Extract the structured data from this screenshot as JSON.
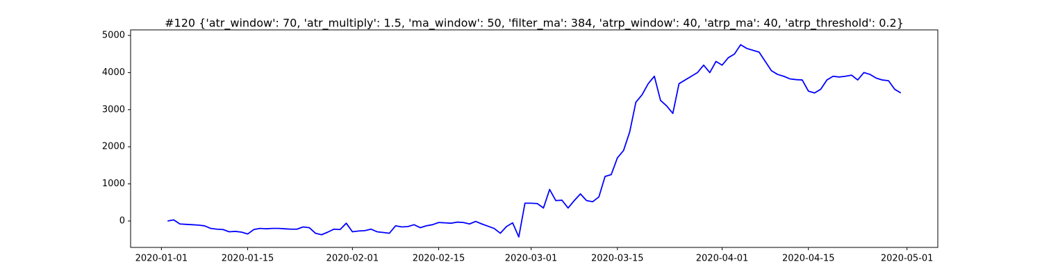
{
  "chart_data": {
    "type": "line",
    "title": "#120 {'atr_window': 70, 'atr_multiply': 1.5, 'ma_window': 50, 'filter_ma': 384, 'atrp_window': 40, 'atrp_ma': 40, 'atrp_threshold': 0.2}",
    "color": "#0000ff",
    "x": [
      "2020-01-02",
      "2020-01-03",
      "2020-01-04",
      "2020-01-05",
      "2020-01-06",
      "2020-01-07",
      "2020-01-08",
      "2020-01-09",
      "2020-01-10",
      "2020-01-11",
      "2020-01-12",
      "2020-01-13",
      "2020-01-14",
      "2020-01-15",
      "2020-01-16",
      "2020-01-17",
      "2020-01-18",
      "2020-01-19",
      "2020-01-20",
      "2020-01-21",
      "2020-01-22",
      "2020-01-23",
      "2020-01-24",
      "2020-01-25",
      "2020-01-26",
      "2020-01-27",
      "2020-01-28",
      "2020-01-29",
      "2020-01-30",
      "2020-01-31",
      "2020-02-01",
      "2020-02-02",
      "2020-02-03",
      "2020-02-04",
      "2020-02-05",
      "2020-02-06",
      "2020-02-07",
      "2020-02-08",
      "2020-02-09",
      "2020-02-10",
      "2020-02-11",
      "2020-02-12",
      "2020-02-13",
      "2020-02-14",
      "2020-02-15",
      "2020-02-16",
      "2020-02-17",
      "2020-02-18",
      "2020-02-19",
      "2020-02-20",
      "2020-02-21",
      "2020-02-22",
      "2020-02-23",
      "2020-02-24",
      "2020-02-25",
      "2020-02-26",
      "2020-02-27",
      "2020-02-28",
      "2020-02-29",
      "2020-03-01",
      "2020-03-02",
      "2020-03-03",
      "2020-03-04",
      "2020-03-05",
      "2020-03-06",
      "2020-03-07",
      "2020-03-08",
      "2020-03-09",
      "2020-03-10",
      "2020-03-11",
      "2020-03-12",
      "2020-03-13",
      "2020-03-14",
      "2020-03-15",
      "2020-03-16",
      "2020-03-17",
      "2020-03-18",
      "2020-03-19",
      "2020-03-20",
      "2020-03-21",
      "2020-03-22",
      "2020-03-23",
      "2020-03-24",
      "2020-03-25",
      "2020-03-26",
      "2020-03-27",
      "2020-03-28",
      "2020-03-29",
      "2020-03-30",
      "2020-03-31",
      "2020-04-01",
      "2020-04-02",
      "2020-04-03",
      "2020-04-04",
      "2020-04-05",
      "2020-04-06",
      "2020-04-07",
      "2020-04-08",
      "2020-04-09",
      "2020-04-10",
      "2020-04-11",
      "2020-04-12",
      "2020-04-13",
      "2020-04-14",
      "2020-04-15",
      "2020-04-16",
      "2020-04-17",
      "2020-04-18",
      "2020-04-19",
      "2020-04-20",
      "2020-04-21",
      "2020-04-22",
      "2020-04-23",
      "2020-04-24",
      "2020-04-25",
      "2020-04-26",
      "2020-04-27",
      "2020-04-28",
      "2020-04-29",
      "2020-04-30"
    ],
    "values": [
      0,
      30,
      -80,
      -90,
      -100,
      -110,
      -130,
      -200,
      -220,
      -230,
      -290,
      -280,
      -300,
      -350,
      -230,
      -200,
      -210,
      -200,
      -200,
      -210,
      -220,
      -220,
      -160,
      -180,
      -330,
      -370,
      -300,
      -220,
      -230,
      -60,
      -290,
      -270,
      -260,
      -220,
      -290,
      -310,
      -330,
      -130,
      -160,
      -150,
      -100,
      -180,
      -130,
      -100,
      -40,
      -50,
      -60,
      -30,
      -40,
      -80,
      -10,
      -80,
      -140,
      -200,
      -330,
      -150,
      -50,
      -430,
      480,
      480,
      470,
      350,
      850,
      550,
      560,
      350,
      550,
      730,
      550,
      520,
      650,
      1200,
      1250,
      1700,
      1900,
      2400,
      3200,
      3400,
      3700,
      3900,
      3250,
      3100,
      2900,
      3700,
      3800,
      3900,
      4000,
      4200,
      4000,
      4300,
      4200,
      4400,
      4500,
      4750,
      4650,
      4600,
      4550,
      4300,
      4050,
      3950,
      3900,
      3830,
      3810,
      3800,
      3500,
      3450,
      3550,
      3800,
      3900,
      3880,
      3900,
      3930,
      3800,
      4000,
      3950,
      3850,
      3800,
      3780,
      3550,
      3450
    ],
    "xlim": [
      "2019-12-27",
      "2020-05-06"
    ],
    "xticks": [
      "2020-01-01",
      "2020-01-15",
      "2020-02-01",
      "2020-02-15",
      "2020-03-01",
      "2020-03-15",
      "2020-04-01",
      "2020-04-15",
      "2020-05-01"
    ],
    "ylim": [
      -712,
      5150
    ],
    "yticks": [
      0,
      1000,
      2000,
      3000,
      4000,
      5000
    ]
  }
}
